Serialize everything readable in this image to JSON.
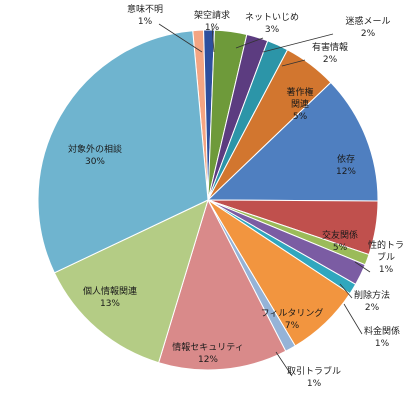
{
  "chart_data": {
    "type": "pie",
    "title": "",
    "unit": "%",
    "slices": [
      {
        "label": "意味不明",
        "value": 1,
        "value_label": "1%",
        "color": "#F4A582"
      },
      {
        "label": "架空請求",
        "value": 1,
        "value_label": "1%",
        "color": "#2E4F9E"
      },
      {
        "label": "ネットいじめ",
        "value": 3,
        "value_label": "3%",
        "color": "#6E9A3A"
      },
      {
        "label": "迷惑メール",
        "value": 2,
        "value_label": "2%",
        "color": "#5C3C80"
      },
      {
        "label": "有害情報",
        "value": 2,
        "value_label": "2%",
        "color": "#2C95A8"
      },
      {
        "label": "著作権\n関連",
        "value": 5,
        "value_label": "5%",
        "color": "#D2762F"
      },
      {
        "label": "依存",
        "value": 12,
        "value_label": "12%",
        "color": "#4F7FC0"
      },
      {
        "label": "交友関係",
        "value": 5,
        "value_label": "5%",
        "color": "#C0504D"
      },
      {
        "label": "性的トラ\nブル",
        "value": 1,
        "value_label": "1%",
        "color": "#9BBB59"
      },
      {
        "label": "削除方法",
        "value": 2,
        "value_label": "2%",
        "color": "#7B5CA3"
      },
      {
        "label": "料金関係",
        "value": 1,
        "value_label": "1%",
        "color": "#31A7BE"
      },
      {
        "label": "フィルタリング",
        "value": 7,
        "value_label": "7%",
        "color": "#F2953F"
      },
      {
        "label": "取引トラブル",
        "value": 1,
        "value_label": "1%",
        "color": "#95B3D7"
      },
      {
        "label": "情報セキュリティ",
        "value": 12,
        "value_label": "12%",
        "color": "#D98A8A"
      },
      {
        "label": "個人情報関連",
        "value": 13,
        "value_label": "13%",
        "color": "#B4CC85"
      },
      {
        "label": "対象外の相談",
        "value": 30,
        "value_label": "30%",
        "color": "#6FB4CF"
      }
    ]
  }
}
